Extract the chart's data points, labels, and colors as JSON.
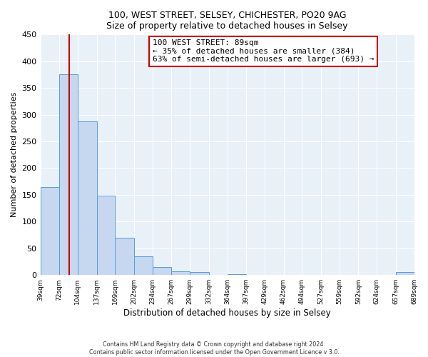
{
  "title1": "100, WEST STREET, SELSEY, CHICHESTER, PO20 9AG",
  "title2": "Size of property relative to detached houses in Selsey",
  "xlabel": "Distribution of detached houses by size in Selsey",
  "ylabel": "Number of detached properties",
  "bin_edges": [
    39,
    72,
    104,
    137,
    169,
    202,
    234,
    267,
    299,
    332,
    364,
    397,
    429,
    462,
    494,
    527,
    559,
    592,
    624,
    657,
    689
  ],
  "bar_heights": [
    165,
    375,
    288,
    148,
    70,
    35,
    15,
    7,
    6,
    0,
    1,
    0,
    0,
    0,
    0,
    0,
    0,
    0,
    0,
    5
  ],
  "bar_color": "#c5d8f0",
  "bar_edge_color": "#5b9bd5",
  "property_size": 89,
  "vline_color": "#cc0000",
  "annotation_title": "100 WEST STREET: 89sqm",
  "annotation_line1": "← 35% of detached houses are smaller (384)",
  "annotation_line2": "63% of semi-detached houses are larger (693) →",
  "annotation_box_edgecolor": "#cc0000",
  "ylim": [
    0,
    450
  ],
  "yticks": [
    0,
    50,
    100,
    150,
    200,
    250,
    300,
    350,
    400,
    450
  ],
  "xtick_labels": [
    "39sqm",
    "72sqm",
    "104sqm",
    "137sqm",
    "169sqm",
    "202sqm",
    "234sqm",
    "267sqm",
    "299sqm",
    "332sqm",
    "364sqm",
    "397sqm",
    "429sqm",
    "462sqm",
    "494sqm",
    "527sqm",
    "559sqm",
    "592sqm",
    "624sqm",
    "657sqm",
    "689sqm"
  ],
  "footer1": "Contains HM Land Registry data © Crown copyright and database right 2024.",
  "footer2": "Contains public sector information licensed under the Open Government Licence v 3.0.",
  "bg_color": "#e8f0f8",
  "fig_bg_color": "#ffffff",
  "grid_color": "#ffffff"
}
